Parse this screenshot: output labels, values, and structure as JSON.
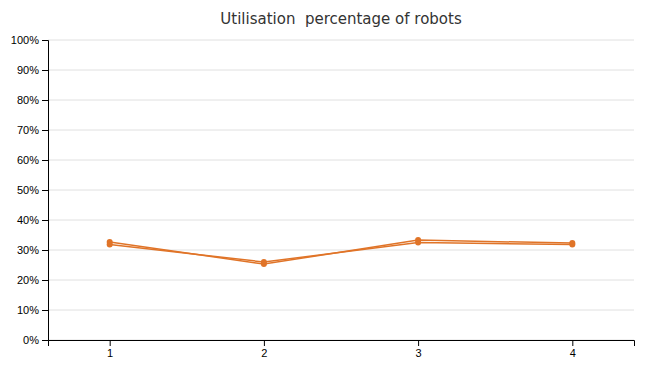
{
  "chart_data": {
    "type": "line",
    "title": "Utilisation  percentage of robots",
    "x": [
      1,
      2,
      3,
      4
    ],
    "series": [
      {
        "color": "#E07428",
        "marker": "circle",
        "values": [
          0.327,
          0.253,
          0.333,
          0.323
        ]
      },
      {
        "color": "#E07428",
        "marker": "circle",
        "values": [
          0.318,
          0.26,
          0.325,
          0.318
        ]
      }
    ],
    "xlim": [
      0.6,
      4.4
    ],
    "ylim": [
      0,
      1.0
    ],
    "xticks": [
      1,
      2,
      3,
      4
    ],
    "yticks": [
      {
        "value": 0.0,
        "label": "0%"
      },
      {
        "value": 0.1,
        "label": "10%"
      },
      {
        "value": 0.2,
        "label": "20%"
      },
      {
        "value": 0.3,
        "label": "30%"
      },
      {
        "value": 0.4,
        "label": "40%"
      },
      {
        "value": 0.5,
        "label": "50%"
      },
      {
        "value": 0.6,
        "label": "60%"
      },
      {
        "value": 0.7,
        "label": "70%"
      },
      {
        "value": 0.8,
        "label": "80%"
      },
      {
        "value": 0.9,
        "label": "90%"
      },
      {
        "value": 1.0,
        "label": "100%"
      }
    ],
    "grid": true
  }
}
